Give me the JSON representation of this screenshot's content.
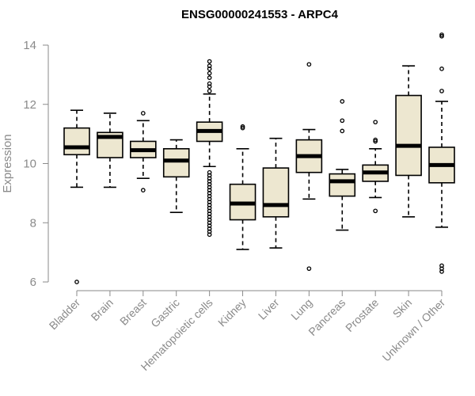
{
  "chart_data": {
    "type": "boxplot",
    "title": "ENSG00000241553 - ARPC4",
    "ylabel": "Expression",
    "xlabel": "",
    "ylim": [
      6,
      14
    ],
    "yticks": [
      "6",
      "8",
      "10",
      "12",
      "14"
    ],
    "colors": {
      "box_fill": "#ede7d0",
      "axis": "#8a8a8a"
    },
    "categories": [
      "Bladder",
      "Brain",
      "Breast",
      "Gastric",
      "Hematopoietic cells",
      "Kidney",
      "Liver",
      "Lung",
      "Pancreas",
      "Prostate",
      "Skin",
      "Unknown / Other"
    ],
    "series": [
      {
        "name": "Bladder",
        "whisker_low": 9.2,
        "q1": 10.3,
        "median": 10.55,
        "q3": 11.2,
        "whisker_high": 11.8,
        "outliers": [
          6.0
        ]
      },
      {
        "name": "Brain",
        "whisker_low": 9.2,
        "q1": 10.2,
        "median": 10.9,
        "q3": 11.05,
        "whisker_high": 11.7,
        "outliers": []
      },
      {
        "name": "Breast",
        "whisker_low": 9.5,
        "q1": 10.2,
        "median": 10.45,
        "q3": 10.75,
        "whisker_high": 11.45,
        "outliers": [
          9.1,
          11.7
        ]
      },
      {
        "name": "Gastric",
        "whisker_low": 8.35,
        "q1": 9.55,
        "median": 10.1,
        "q3": 10.5,
        "whisker_high": 10.8,
        "outliers": []
      },
      {
        "name": "Hematopoietic cells",
        "whisker_low": 9.9,
        "q1": 10.75,
        "median": 11.1,
        "q3": 11.4,
        "whisker_high": 12.35,
        "outliers": [
          7.6,
          7.7,
          7.8,
          7.9,
          8.0,
          8.1,
          8.2,
          8.3,
          8.4,
          8.5,
          8.6,
          8.7,
          8.8,
          8.9,
          9.0,
          9.1,
          9.2,
          9.3,
          9.4,
          9.5,
          9.6,
          9.7,
          12.45,
          12.6,
          12.7,
          12.9,
          13.05,
          13.2,
          13.3,
          13.45
        ]
      },
      {
        "name": "Kidney",
        "whisker_low": 7.1,
        "q1": 8.1,
        "median": 8.65,
        "q3": 9.3,
        "whisker_high": 10.5,
        "outliers": [
          11.2,
          11.25
        ]
      },
      {
        "name": "Liver",
        "whisker_low": 7.15,
        "q1": 8.2,
        "median": 8.6,
        "q3": 9.85,
        "whisker_high": 10.85,
        "outliers": []
      },
      {
        "name": "Lung",
        "whisker_low": 8.8,
        "q1": 9.7,
        "median": 10.25,
        "q3": 10.8,
        "whisker_high": 11.15,
        "outliers": [
          13.35,
          6.45
        ]
      },
      {
        "name": "Pancreas",
        "whisker_low": 7.75,
        "q1": 8.9,
        "median": 9.4,
        "q3": 9.65,
        "whisker_high": 9.8,
        "outliers": [
          12.1,
          11.45,
          11.1
        ]
      },
      {
        "name": "Prostate",
        "whisker_low": 8.85,
        "q1": 9.4,
        "median": 9.7,
        "q3": 9.95,
        "whisker_high": 10.5,
        "outliers": [
          11.4,
          10.8,
          10.75,
          8.4
        ]
      },
      {
        "name": "Skin",
        "whisker_low": 8.2,
        "q1": 9.6,
        "median": 10.6,
        "q3": 12.3,
        "whisker_high": 13.3,
        "outliers": []
      },
      {
        "name": "Unknown / Other",
        "whisker_low": 7.85,
        "q1": 9.35,
        "median": 9.95,
        "q3": 10.55,
        "whisker_high": 12.1,
        "outliers": [
          14.35,
          14.3,
          13.2,
          12.45,
          6.55,
          6.45,
          6.35
        ]
      }
    ]
  }
}
